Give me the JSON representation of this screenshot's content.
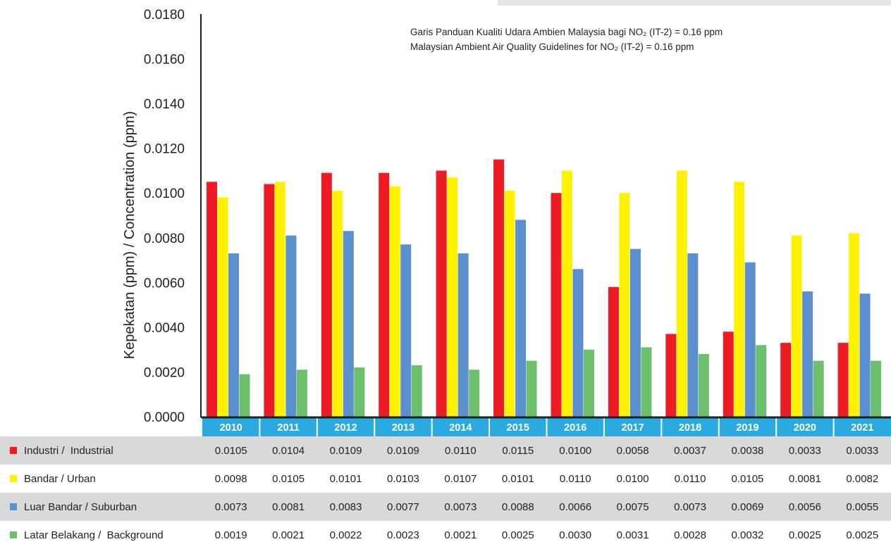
{
  "chart_data": {
    "type": "bar",
    "ylabel": "Kepekatan (ppm) / Concentration (ppm)",
    "ylim": [
      0,
      0.018
    ],
    "yticks": [
      "0.0000",
      "0.0020",
      "0.0040",
      "0.0060",
      "0.0080",
      "0.0100",
      "0.0120",
      "0.0140",
      "0.0160",
      "0.0180"
    ],
    "annotation": [
      "Garis Panduan Kualiti Udara Ambien Malaysia bagi NO₂ (IT-2) = 0.16 ppm",
      "Malaysian Ambient Air Quality Guidelines for NO₂ (IT-2) = 0.16 ppm"
    ],
    "categories": [
      "2010",
      "2011",
      "2012",
      "2013",
      "2014",
      "2015",
      "2016",
      "2017",
      "2018",
      "2019",
      "2020",
      "2021"
    ],
    "series": [
      {
        "name": "Industri /  Industrial",
        "color": "#ed1c24",
        "values": [
          0.0105,
          0.0104,
          0.0109,
          0.0109,
          0.011,
          0.0115,
          0.01,
          0.0058,
          0.0037,
          0.0038,
          0.0033,
          0.0033
        ],
        "labels": [
          "0.0105",
          "0.0104",
          "0.0109",
          "0.0109",
          "0.0110",
          "0.0115",
          "0.0100",
          "0.0058",
          "0.0037",
          "0.0038",
          "0.0033",
          "0.0033"
        ]
      },
      {
        "name": "Bandar / Urban",
        "color": "#fff200",
        "values": [
          0.0098,
          0.0105,
          0.0101,
          0.0103,
          0.0107,
          0.0101,
          0.011,
          0.01,
          0.011,
          0.0105,
          0.0081,
          0.0082
        ],
        "labels": [
          "0.0098",
          "0.0105",
          "0.0101",
          "0.0103",
          "0.0107",
          "0.0101",
          "0.0110",
          "0.0100",
          "0.0110",
          "0.0105",
          "0.0081",
          "0.0082"
        ]
      },
      {
        "name": "Luar Bandar / Suburban",
        "color": "#5b8fcf",
        "values": [
          0.0073,
          0.0081,
          0.0083,
          0.0077,
          0.0073,
          0.0088,
          0.0066,
          0.0075,
          0.0073,
          0.0069,
          0.0056,
          0.0055
        ],
        "labels": [
          "0.0073",
          "0.0081",
          "0.0083",
          "0.0077",
          "0.0073",
          "0.0088",
          "0.0066",
          "0.0075",
          "0.0073",
          "0.0069",
          "0.0056",
          "0.0055"
        ]
      },
      {
        "name": "Latar Belakang /  Background",
        "color": "#6cc06c",
        "values": [
          0.0019,
          0.0021,
          0.0022,
          0.0023,
          0.0021,
          0.0025,
          0.003,
          0.0031,
          0.0028,
          0.0032,
          0.0025,
          0.0025
        ],
        "labels": [
          "0.0019",
          "0.0021",
          "0.0022",
          "0.0023",
          "0.0021",
          "0.0025",
          "0.0030",
          "0.0031",
          "0.0028",
          "0.0032",
          "0.0025",
          "0.0025"
        ]
      }
    ],
    "colors": {
      "year_band": "#29abe2",
      "row_shade": "#d9d9d9",
      "axis": "#231f20"
    },
    "grid": false,
    "legend": "table-below"
  }
}
